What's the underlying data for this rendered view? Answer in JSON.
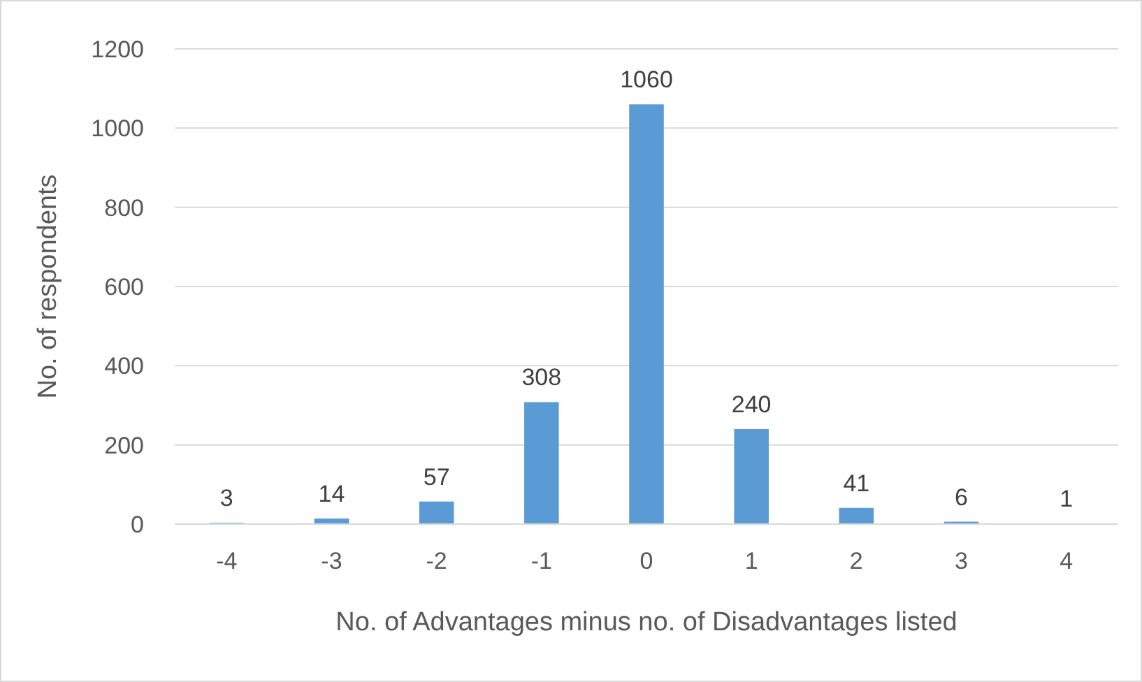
{
  "chart_data": {
    "type": "bar",
    "xlabel": "No. of Advantages minus no. of Disadvantages listed",
    "ylabel": "No. of respondents",
    "categories": [
      "-4",
      "-3",
      "-2",
      "-1",
      "0",
      "1",
      "2",
      "3",
      "4"
    ],
    "values": [
      3,
      14,
      57,
      308,
      1060,
      240,
      41,
      6,
      1
    ],
    "color": "#5b9bd5",
    "ylim": [
      0,
      1200
    ],
    "yticks": [
      0,
      200,
      400,
      600,
      800,
      1000,
      1200
    ],
    "grid": "y",
    "data_labels": true
  }
}
